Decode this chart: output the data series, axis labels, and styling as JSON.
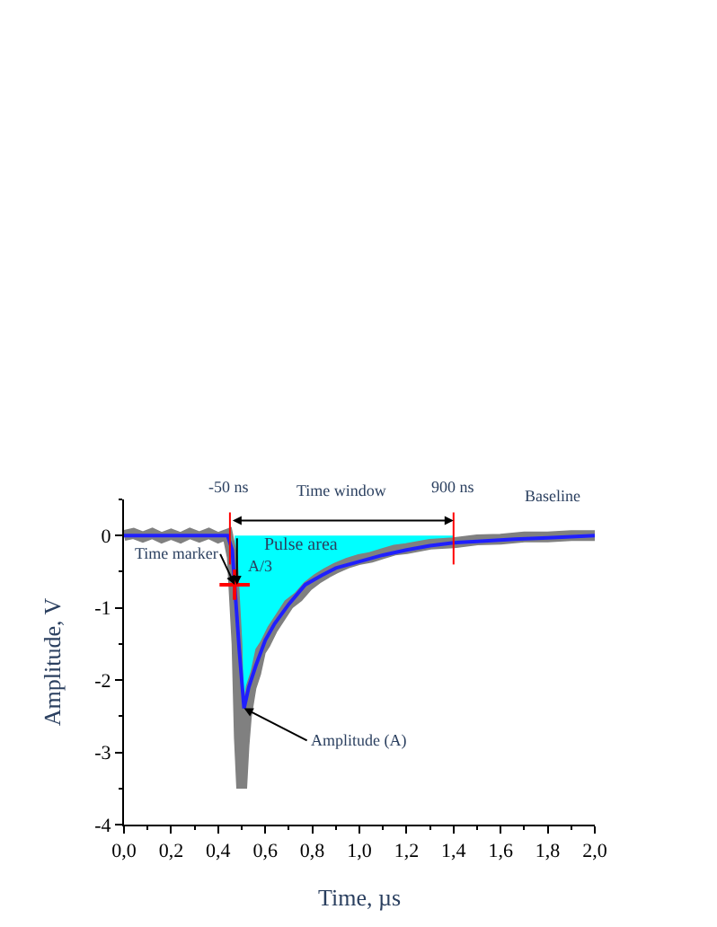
{
  "chart_data": {
    "type": "line",
    "xlabel": "Time, µs",
    "ylabel": "Amplitude, V",
    "xlim": [
      0,
      2
    ],
    "ylim": [
      -4,
      0.5
    ],
    "xticks": [
      {
        "value": 0,
        "label": "0,0"
      },
      {
        "value": 0.2,
        "label": "0,2"
      },
      {
        "value": 0.4,
        "label": "0,4"
      },
      {
        "value": 0.6,
        "label": "0,6"
      },
      {
        "value": 0.8,
        "label": "0,8"
      },
      {
        "value": 1.0,
        "label": "1,0"
      },
      {
        "value": 1.2,
        "label": "1,2"
      },
      {
        "value": 1.4,
        "label": "1,4"
      },
      {
        "value": 1.6,
        "label": "1,6"
      },
      {
        "value": 1.8,
        "label": "1,8"
      },
      {
        "value": 2.0,
        "label": "2,0"
      }
    ],
    "yticks": [
      -4,
      -3,
      -2,
      -1,
      0
    ],
    "series": [
      {
        "type": "area",
        "color": "#00ffff",
        "x": [
          0.47,
          0.48,
          0.5,
          0.52,
          0.56,
          0.6,
          0.65,
          0.7,
          0.8,
          0.9,
          1.0,
          1.1,
          1.2,
          1.3,
          1.4
        ],
        "values": [
          -0.68,
          -2.0,
          -2.6,
          -2.2,
          -1.7,
          -1.35,
          -1.1,
          -0.88,
          -0.6,
          -0.42,
          -0.32,
          -0.24,
          -0.17,
          -0.12,
          -0.08
        ]
      },
      {
        "type": "line",
        "color": "#808080",
        "x": [
          0,
          0.04,
          0.08,
          0.12,
          0.16,
          0.2,
          0.24,
          0.28,
          0.32,
          0.36,
          0.4,
          0.44,
          0.46,
          0.48,
          0.49,
          0.5,
          0.51,
          0.52,
          0.54,
          0.56,
          0.58,
          0.6,
          0.63,
          0.66,
          0.7,
          0.74,
          0.78,
          0.82,
          0.86,
          0.9,
          0.95,
          1.0,
          1.05,
          1.1,
          1.15,
          1.2,
          1.3,
          1.4,
          1.5,
          1.6,
          1.7,
          1.8,
          1.9,
          2.0
        ],
        "values": [
          0,
          0.03,
          -0.02,
          0.03,
          -0.03,
          0.02,
          -0.03,
          0.03,
          -0.02,
          0.03,
          -0.03,
          0.02,
          -0.3,
          -1.5,
          -2.8,
          -3.5,
          -2.9,
          -2.5,
          -2.1,
          -1.9,
          -1.6,
          -1.5,
          -1.3,
          -1.15,
          -0.95,
          -0.85,
          -0.7,
          -0.6,
          -0.52,
          -0.45,
          -0.38,
          -0.33,
          -0.3,
          -0.25,
          -0.2,
          -0.18,
          -0.12,
          -0.1,
          -0.06,
          -0.05,
          -0.02,
          -0.02,
          0,
          0
        ]
      },
      {
        "color": "#1f1fff",
        "x": [
          0,
          0.44,
          0.46,
          0.47,
          0.49,
          0.51,
          0.53,
          0.56,
          0.6,
          0.64,
          0.7,
          0.77,
          0.84,
          0.9,
          1.0,
          1.1,
          1.2,
          1.3,
          1.4,
          1.5,
          1.66,
          1.8,
          2.0
        ],
        "values": [
          0,
          0,
          -0.2,
          -0.68,
          -1.6,
          -2.39,
          -2.1,
          -1.8,
          -1.45,
          -1.22,
          -0.95,
          -0.68,
          -0.55,
          -0.45,
          -0.36,
          -0.27,
          -0.2,
          -0.14,
          -0.1,
          -0.08,
          -0.05,
          -0.03,
          0
        ]
      },
      {
        "type": "scatter",
        "color": "#ff0000",
        "marker": "cross",
        "x": [
          0.47
        ],
        "values": [
          -0.68
        ]
      }
    ],
    "ref_lines": [
      {
        "axis": "x",
        "value": 0.45,
        "label": "-50 ns",
        "color": "#ff0000"
      },
      {
        "axis": "x",
        "value": 1.4,
        "label": "900 ns",
        "color": "#ff0000"
      }
    ],
    "annotations": [
      "Time window",
      "Baseline",
      "Pulse area",
      {
        "text": "Time marker",
        "x": 0.47,
        "y": -0.68
      },
      {
        "text": "A/3",
        "x": 0.48,
        "y": -0.68
      },
      {
        "text": "Amplitude (A)",
        "x": 0.51,
        "y": -2.39
      }
    ]
  }
}
